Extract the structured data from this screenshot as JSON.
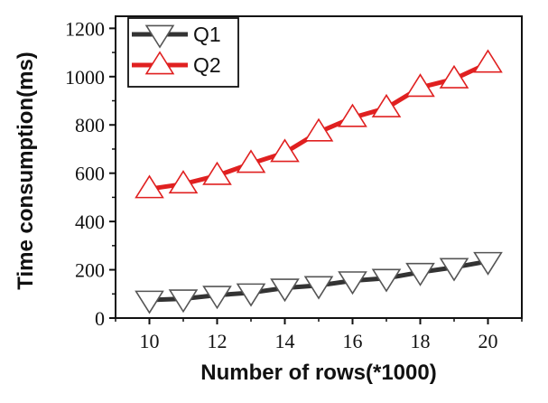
{
  "chart_data": {
    "type": "line",
    "title": "",
    "xlabel": "Number of rows(*1000)",
    "ylabel": "Time consumption(ms)",
    "x": [
      10,
      11,
      12,
      13,
      14,
      15,
      16,
      17,
      18,
      19,
      20
    ],
    "xlim": [
      9,
      21
    ],
    "ylim": [
      0,
      1250
    ],
    "xticks": [
      "10",
      "12",
      "14",
      "16",
      "18",
      "20"
    ],
    "yticks": [
      "0",
      "200",
      "400",
      "600",
      "800",
      "1000",
      "1200"
    ],
    "grid": false,
    "legend": "top-left",
    "series": [
      {
        "name": "Q1",
        "color": "#333333",
        "marker": "triangle-down",
        "values": [
          75,
          80,
          95,
          105,
          125,
          135,
          155,
          165,
          190,
          210,
          235
        ]
      },
      {
        "name": "Q2",
        "color": "#e02020",
        "marker": "triangle-up",
        "values": [
          535,
          555,
          590,
          640,
          685,
          770,
          830,
          870,
          955,
          990,
          1055
        ]
      }
    ]
  }
}
